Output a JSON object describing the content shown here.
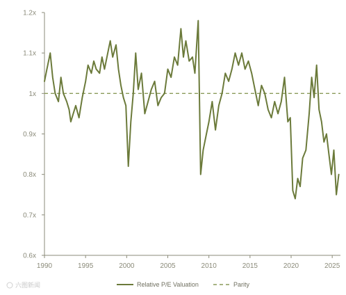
{
  "chart_data": {
    "type": "line",
    "title": "",
    "xlabel": "",
    "ylabel": "",
    "xlim": [
      1990,
      2026
    ],
    "ylim": [
      0.6,
      1.2
    ],
    "grid": false,
    "legend_position": "bottom",
    "y_ticks": [
      {
        "value": 0.6,
        "label": "0.6x"
      },
      {
        "value": 0.7,
        "label": "0.7x"
      },
      {
        "value": 0.8,
        "label": "0.8x"
      },
      {
        "value": 0.9,
        "label": "0.9x"
      },
      {
        "value": 1.0,
        "label": "1x"
      },
      {
        "value": 1.1,
        "label": "1.1x"
      },
      {
        "value": 1.2,
        "label": "1.2x"
      }
    ],
    "x_ticks": [
      {
        "value": 1990,
        "label": "1990"
      },
      {
        "value": 1995,
        "label": "1995"
      },
      {
        "value": 2000,
        "label": "2000"
      },
      {
        "value": 2005,
        "label": "2005"
      },
      {
        "value": 2010,
        "label": "2010"
      },
      {
        "value": 2015,
        "label": "2015"
      },
      {
        "value": 2020,
        "label": "2020"
      },
      {
        "value": 2025,
        "label": "2025"
      }
    ],
    "series": [
      {
        "name": "Relative P/E Valuation",
        "color": "#6b7a3a",
        "style": "solid",
        "points": [
          [
            1990.0,
            1.03
          ],
          [
            1990.3,
            1.06
          ],
          [
            1990.7,
            1.1
          ],
          [
            1991.0,
            1.04
          ],
          [
            1991.3,
            1.0
          ],
          [
            1991.7,
            0.98
          ],
          [
            1992.0,
            1.04
          ],
          [
            1992.3,
            1.0
          ],
          [
            1992.7,
            0.98
          ],
          [
            1993.0,
            0.96
          ],
          [
            1993.2,
            0.93
          ],
          [
            1993.5,
            0.95
          ],
          [
            1993.8,
            0.97
          ],
          [
            1994.2,
            0.94
          ],
          [
            1994.6,
            0.99
          ],
          [
            1995.0,
            1.03
          ],
          [
            1995.3,
            1.07
          ],
          [
            1995.7,
            1.05
          ],
          [
            1996.0,
            1.08
          ],
          [
            1996.3,
            1.06
          ],
          [
            1996.7,
            1.05
          ],
          [
            1997.0,
            1.09
          ],
          [
            1997.3,
            1.06
          ],
          [
            1997.7,
            1.1
          ],
          [
            1998.0,
            1.13
          ],
          [
            1998.3,
            1.09
          ],
          [
            1998.7,
            1.12
          ],
          [
            1999.0,
            1.06
          ],
          [
            1999.3,
            1.02
          ],
          [
            1999.6,
            0.99
          ],
          [
            1999.9,
            0.97
          ],
          [
            2000.2,
            0.82
          ],
          [
            2000.5,
            0.93
          ],
          [
            2000.8,
            1.0
          ],
          [
            2001.1,
            1.1
          ],
          [
            2001.4,
            1.01
          ],
          [
            2001.8,
            1.05
          ],
          [
            2002.2,
            0.95
          ],
          [
            2002.6,
            0.98
          ],
          [
            2003.0,
            1.01
          ],
          [
            2003.4,
            1.03
          ],
          [
            2003.8,
            0.97
          ],
          [
            2004.2,
            0.99
          ],
          [
            2004.6,
            1.0
          ],
          [
            2005.0,
            1.06
          ],
          [
            2005.4,
            1.04
          ],
          [
            2005.8,
            1.09
          ],
          [
            2006.2,
            1.07
          ],
          [
            2006.6,
            1.16
          ],
          [
            2006.9,
            1.09
          ],
          [
            2007.2,
            1.13
          ],
          [
            2007.6,
            1.08
          ],
          [
            2008.0,
            1.09
          ],
          [
            2008.3,
            1.05
          ],
          [
            2008.7,
            1.18
          ],
          [
            2009.0,
            0.8
          ],
          [
            2009.3,
            0.86
          ],
          [
            2009.7,
            0.9
          ],
          [
            2010.0,
            0.93
          ],
          [
            2010.4,
            0.98
          ],
          [
            2010.8,
            0.91
          ],
          [
            2011.2,
            0.97
          ],
          [
            2011.6,
            1.0
          ],
          [
            2012.0,
            1.05
          ],
          [
            2012.4,
            1.03
          ],
          [
            2012.8,
            1.06
          ],
          [
            2013.2,
            1.1
          ],
          [
            2013.6,
            1.07
          ],
          [
            2014.0,
            1.1
          ],
          [
            2014.4,
            1.06
          ],
          [
            2014.8,
            1.08
          ],
          [
            2015.2,
            1.05
          ],
          [
            2015.6,
            1.01
          ],
          [
            2016.0,
            0.97
          ],
          [
            2016.4,
            1.02
          ],
          [
            2016.8,
            1.0
          ],
          [
            2017.2,
            0.96
          ],
          [
            2017.6,
            0.94
          ],
          [
            2018.0,
            0.98
          ],
          [
            2018.4,
            0.95
          ],
          [
            2018.8,
            0.98
          ],
          [
            2019.2,
            1.04
          ],
          [
            2019.6,
            0.93
          ],
          [
            2019.9,
            0.94
          ],
          [
            2020.2,
            0.76
          ],
          [
            2020.5,
            0.74
          ],
          [
            2020.8,
            0.79
          ],
          [
            2021.1,
            0.77
          ],
          [
            2021.4,
            0.84
          ],
          [
            2021.8,
            0.86
          ],
          [
            2022.2,
            0.95
          ],
          [
            2022.5,
            1.04
          ],
          [
            2022.8,
            0.99
          ],
          [
            2023.1,
            1.07
          ],
          [
            2023.4,
            0.96
          ],
          [
            2023.7,
            0.93
          ],
          [
            2024.0,
            0.88
          ],
          [
            2024.3,
            0.9
          ],
          [
            2024.6,
            0.85
          ],
          [
            2024.9,
            0.8
          ],
          [
            2025.2,
            0.86
          ],
          [
            2025.5,
            0.75
          ],
          [
            2025.8,
            0.8
          ]
        ]
      },
      {
        "name": "Parity",
        "color": "#8a9a5a",
        "style": "dashed",
        "points": [
          [
            1990.0,
            1.0
          ],
          [
            2026.0,
            1.0
          ]
        ]
      }
    ]
  },
  "watermark": {
    "text": "六图新闻"
  }
}
